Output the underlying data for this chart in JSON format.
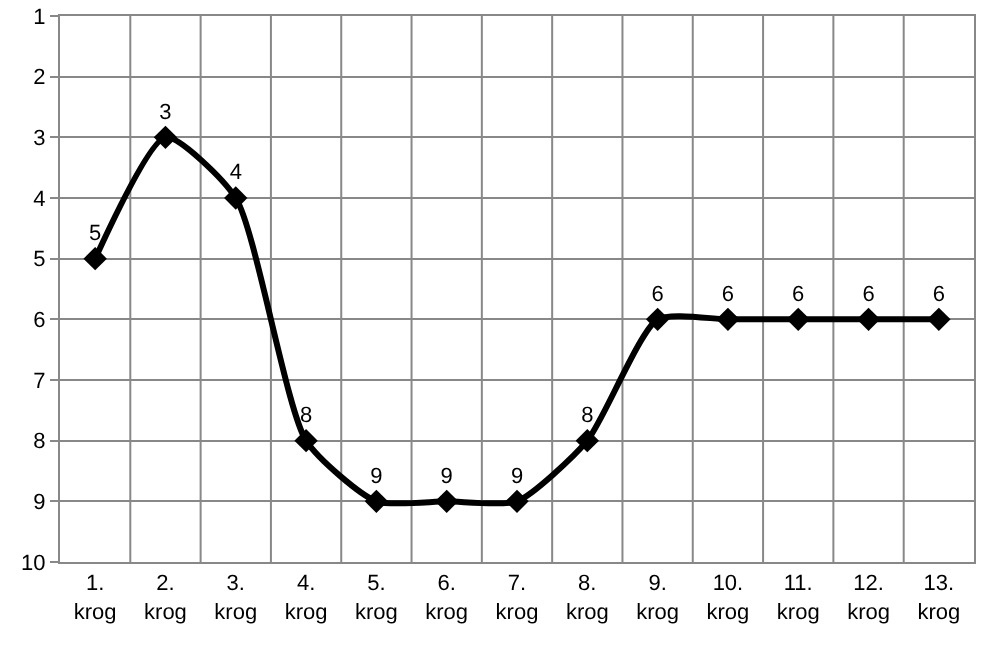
{
  "chart_data": {
    "type": "line",
    "categories": [
      "1. krog",
      "2. krog",
      "3. krog",
      "4. krog",
      "5. krog",
      "6. krog",
      "7. krog",
      "8. krog",
      "9. krog",
      "10. krog",
      "11. krog",
      "12. krog",
      "13. krog"
    ],
    "series": [
      {
        "color": "#000000",
        "values": [
          5,
          3,
          4,
          8,
          9,
          9,
          9,
          8,
          6,
          6,
          6,
          6,
          6
        ]
      }
    ],
    "ylim": [
      10,
      1
    ],
    "yticks": [
      1,
      2,
      3,
      4,
      5,
      6,
      7,
      8,
      9,
      10
    ],
    "grid": true,
    "marker": "diamond",
    "line_style": "solid",
    "data_labels": true
  }
}
